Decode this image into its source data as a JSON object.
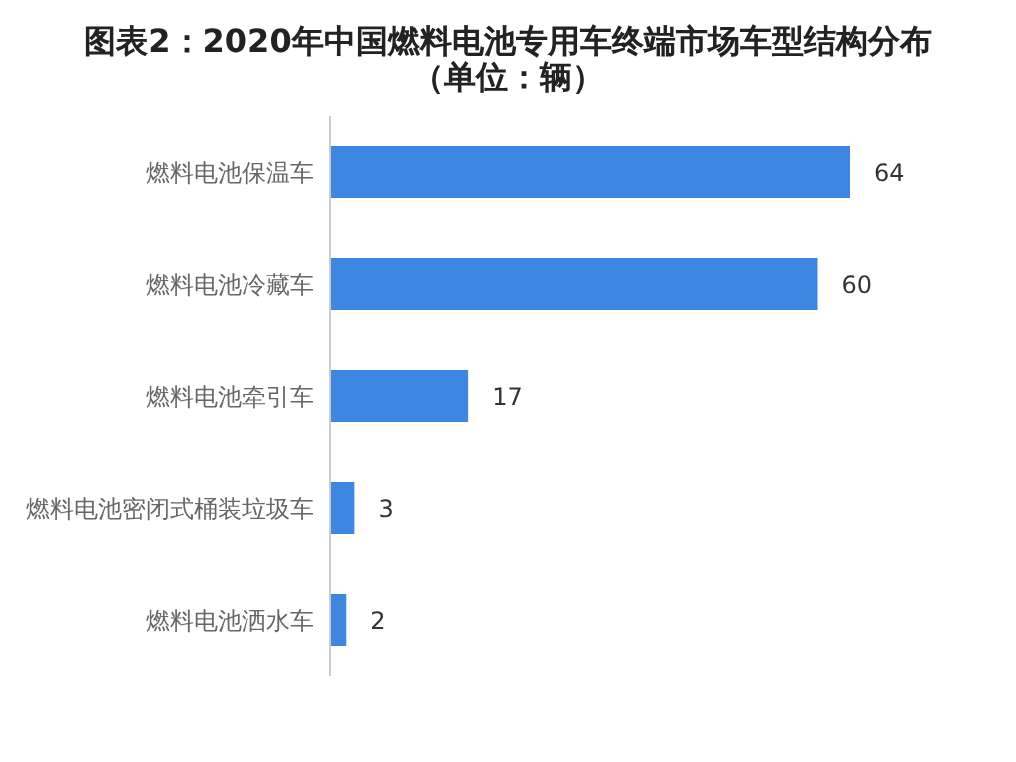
{
  "chart_data": {
    "type": "bar",
    "orientation": "horizontal",
    "title": "图表2：2020年中国燃料电池专用车终端市场车型结构分布（单位：辆）",
    "categories": [
      "燃料电池保温车",
      "燃料电池冷藏车",
      "燃料电池牵引车",
      "燃料电池密闭式桶装垃圾车",
      "燃料电池洒水车"
    ],
    "values": [
      64,
      60,
      17,
      3,
      2
    ],
    "color": "#3f86e0",
    "data_labels": true,
    "grid": false
  }
}
